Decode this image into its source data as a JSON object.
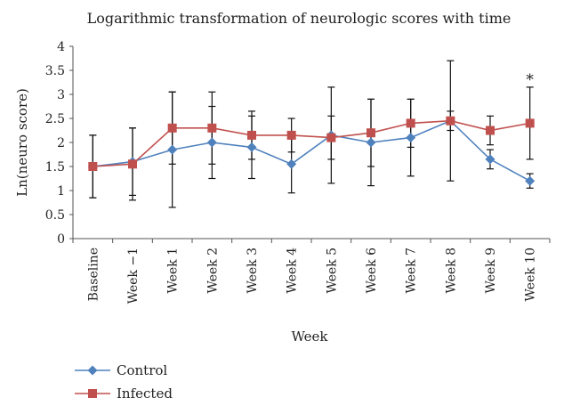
{
  "chart_data": {
    "type": "line",
    "title": "Logarithmic transformation of neurologic scores with time",
    "xlabel": "Week",
    "ylabel": "Ln(neuro score)",
    "ylim": [
      0,
      4
    ],
    "yticks": [
      "0",
      "0.5",
      "1",
      "1.5",
      "2",
      "2.5",
      "3",
      "3.5",
      "4"
    ],
    "grid": false,
    "legend_position": "bottom-left",
    "categories": [
      "Baseline",
      "Week −1",
      "Week 1",
      "Week 2",
      "Week 3",
      "Week 4",
      "Week 5",
      "Week 6",
      "Week 7",
      "Week 8",
      "Week 9",
      "Week 10"
    ],
    "series": [
      {
        "name": "Control",
        "color": "#4f81bd",
        "marker": "diamond",
        "values": [
          1.5,
          1.6,
          1.85,
          2.0,
          1.9,
          1.55,
          2.15,
          2.0,
          2.1,
          2.45,
          1.65,
          1.2
        ],
        "error": [
          0.65,
          0.7,
          1.2,
          0.75,
          0.65,
          0.6,
          1.0,
          0.9,
          0.8,
          1.25,
          0.2,
          0.15
        ]
      },
      {
        "name": "Infected",
        "color": "#c0504d",
        "marker": "square",
        "values": [
          1.5,
          1.55,
          2.3,
          2.3,
          2.15,
          2.15,
          2.1,
          2.2,
          2.4,
          2.45,
          2.25,
          2.4
        ],
        "error": [
          0.65,
          0.75,
          0.75,
          0.75,
          0.5,
          0.35,
          0.45,
          0.7,
          0.5,
          0.2,
          0.3,
          0.75
        ]
      }
    ],
    "annotations": [
      {
        "text": "*",
        "category": "Week 10"
      }
    ]
  }
}
